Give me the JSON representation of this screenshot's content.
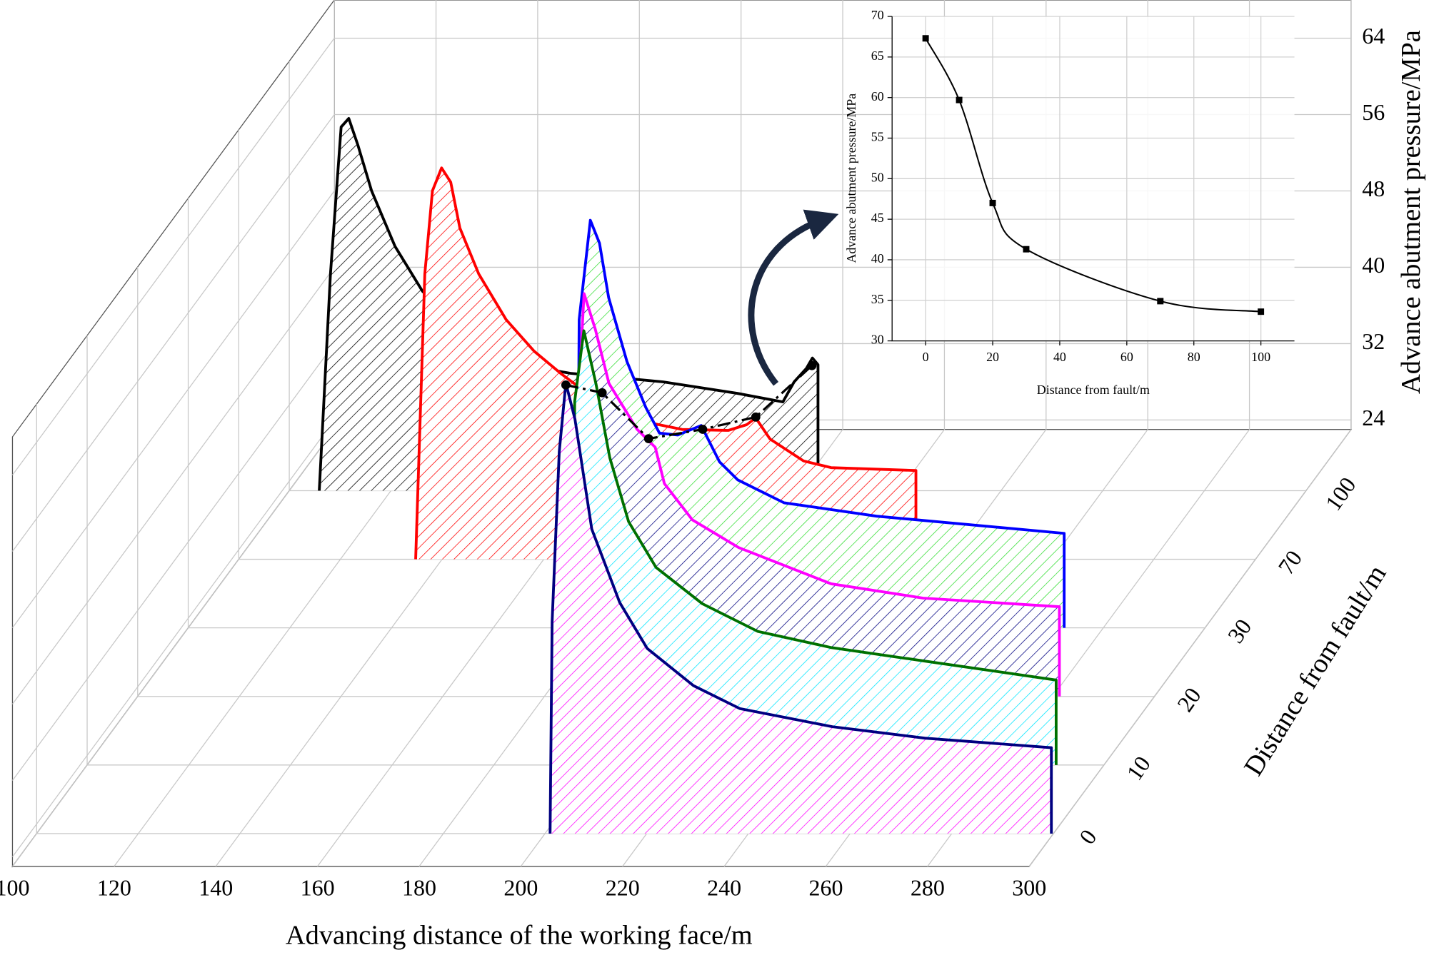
{
  "chart_data": [
    {
      "type": "waterfall",
      "x_label": "Advancing distance of the working face/m",
      "y_label": "Advance abutment pressure/MPa",
      "z_label": "Distance from fault/m",
      "z_categories": [
        "0",
        "10",
        "20",
        "30",
        "70",
        "100"
      ],
      "xlim": [
        100,
        300
      ],
      "xticks": [
        100,
        120,
        140,
        160,
        180,
        200,
        220,
        240,
        260,
        280,
        300
      ],
      "ylim": [
        23,
        68
      ],
      "yticks": [
        24,
        32,
        40,
        48,
        56,
        64
      ],
      "grid": true,
      "series": [
        {
          "color": "#000080",
          "hatch": "#ff00ff",
          "x": [
            201.0,
            201.4,
            202.8,
            204.1,
            205.9,
            209.2,
            214.7,
            220.1,
            229.2,
            238.3,
            256.5,
            274.7,
            299.6,
            299.6
          ],
          "values": [
            23,
            45.2,
            63.0,
            70.2,
            66.4,
            54.9,
            47.2,
            42.4,
            38.5,
            36.1,
            34.2,
            33.0,
            32.0,
            23
          ]
        },
        {
          "color": "#007000",
          "hatch": "#00e5ff",
          "x": [
            195.2,
            195.9,
            197.7,
            200.1,
            202.8,
            206.5,
            211.9,
            221.0,
            231.9,
            246.4,
            264.6,
            290.6,
            290.6
          ],
          "values": [
            23,
            61.1,
            68.5,
            62.9,
            55.2,
            48.5,
            43.7,
            39.9,
            37.0,
            35.3,
            33.9,
            31.9,
            23
          ]
        },
        {
          "color": "#ff00ff",
          "hatch": "#000080",
          "x": [
            185.8,
            186.4,
            187.8,
            190.0,
            192.7,
            198.2,
            201.8,
            203.6,
            209.1,
            218.2,
            236.4,
            254.5,
            281.3,
            281.3
          ],
          "values": [
            23,
            51.0,
            65.2,
            61.5,
            55.8,
            51.0,
            49.1,
            45.3,
            41.5,
            38.6,
            34.8,
            33.3,
            32.4,
            23
          ]
        },
        {
          "color": "#0000ff",
          "hatch": "#33dd33",
          "x": [
            176.5,
            176.9,
            179.1,
            180.9,
            182.7,
            186.3,
            190.0,
            192.7,
            196.3,
            200.9,
            204.5,
            208.1,
            217.2,
            235.4,
            272.3,
            272.3
          ],
          "values": [
            23,
            55.3,
            65.7,
            63.3,
            57.6,
            50.9,
            46.1,
            43.4,
            43.2,
            44.2,
            40.4,
            38.5,
            36.1,
            34.7,
            32.9,
            23
          ]
        },
        {
          "color": "#ff0000",
          "hatch": "#ff0000",
          "x": [
            134.8,
            136.6,
            138.1,
            139.9,
            141.7,
            143.5,
            147.2,
            152.6,
            158.1,
            163.5,
            170.8,
            179.9,
            187.2,
            196.3,
            199.9,
            201.7,
            204.5,
            211.1,
            216.5,
            233.2,
            233.2
          ],
          "values": [
            23,
            52.9,
            61.6,
            64.0,
            62.5,
            57.7,
            52.9,
            48.1,
            44.8,
            42.4,
            39.5,
            37.4,
            36.6,
            36.5,
            37.1,
            37.8,
            35.6,
            33.3,
            32.6,
            32.3,
            23
          ]
        },
        {
          "color": "#000000",
          "hatch": "#000000",
          "x": [
            105.9,
            108.1,
            110.2,
            111.7,
            113.5,
            116.2,
            120.8,
            126.2,
            133.5,
            144.4,
            155.3,
            173.5,
            188.1,
            197.1,
            199.3,
            201.7,
            202.9,
            204.0,
            204.0
          ],
          "values": [
            23,
            45.7,
            61.1,
            62.0,
            59.2,
            54.4,
            48.6,
            43.9,
            40.1,
            36.3,
            35.3,
            34.4,
            33.2,
            32.3,
            34.4,
            35.8,
            36.9,
            36.2,
            23
          ]
        }
      ],
      "trend": {
        "x": [
          204.1,
          201.3,
          200.5,
          201.2,
          201.7,
          202.8
        ],
        "values": [
          70.0,
          62.0,
          50.0,
          43.8,
          37.9,
          36.1
        ]
      }
    },
    {
      "type": "line",
      "x_label": "Distance from fault/m",
      "y_label": "Advance abutment pressure/MPa",
      "x": [
        0,
        10,
        20,
        30,
        70,
        100
      ],
      "values": [
        67.3,
        59.7,
        47.0,
        41.3,
        34.9,
        33.6
      ],
      "color": "#000000",
      "xlim": [
        -10,
        110
      ],
      "xticks": [
        0,
        20,
        40,
        60,
        80,
        100
      ],
      "ylim": [
        30,
        70
      ],
      "yticks": [
        30,
        35,
        40,
        45,
        50,
        55,
        60,
        65,
        70
      ],
      "grid": true
    }
  ]
}
